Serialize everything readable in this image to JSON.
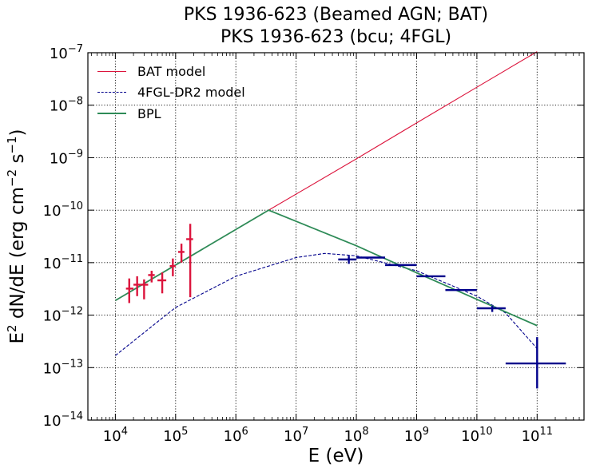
{
  "chart_data": {
    "type": "scatter",
    "title_line1": "PKS 1936-623 (Beamed AGN; BAT)",
    "title_line2": "PKS 1936-623 (bcu; 4FGL)",
    "xlabel": "E (eV)",
    "ylabel": "E2 dN/dE (erg cm−2 s−1)",
    "xscale": "log",
    "yscale": "log",
    "xlim": [
      3500,
      600000000000
    ],
    "ylim": [
      1e-14,
      1e-07
    ],
    "grid": true,
    "legend_position": "top-left",
    "x_tick_exponents": [
      4,
      5,
      6,
      7,
      8,
      9,
      10,
      11
    ],
    "y_tick_exponents": [
      -14,
      -13,
      -12,
      -11,
      -10,
      -9,
      -8,
      -7
    ],
    "series": [
      {
        "name": "BAT model",
        "kind": "line",
        "style": "solid",
        "color": "#dc143c",
        "x": [
          10000,
          3500000,
          100000000,
          1000000000,
          10000000000,
          100000000000
        ],
        "y": [
          1.9e-12,
          1e-10,
          9.5e-10,
          4.6e-09,
          2.2e-08,
          1.05e-07
        ]
      },
      {
        "name": "4FGL-DR2 model",
        "kind": "line",
        "style": "dashed",
        "color": "#00008b",
        "x": [
          10000,
          100000,
          1000000,
          10000000,
          30000000,
          100000000,
          1000000000,
          10000000000,
          30000000000,
          100000000000
        ],
        "y": [
          1.7e-13,
          1.4e-12,
          5.5e-12,
          1.25e-11,
          1.5e-11,
          1.35e-11,
          7e-12,
          2.3e-12,
          1.1e-12,
          2.3e-13
        ]
      },
      {
        "name": "BPL",
        "kind": "line",
        "style": "solid",
        "color": "#2e8b57",
        "x": [
          10000,
          3500000,
          100000000,
          1000000000,
          10000000000,
          100000000000
        ],
        "y": [
          1.9e-12,
          1e-10,
          2.1e-11,
          6.4e-12,
          2e-12,
          6.3e-13
        ]
      },
      {
        "name": "BAT data",
        "kind": "errorbar",
        "color": "#dc143c",
        "points": [
          {
            "x": 17000,
            "y": 3.2e-12,
            "xlo": 15000,
            "xhi": 20000,
            "ylo": 1.7e-12,
            "yhi": 5e-12
          },
          {
            "x": 23000,
            "y": 3.8e-12,
            "xlo": 20000,
            "xhi": 26000,
            "ylo": 2.3e-12,
            "yhi": 5.5e-12
          },
          {
            "x": 30000,
            "y": 3.8e-12,
            "xlo": 26000,
            "xhi": 35000,
            "ylo": 2e-12,
            "yhi": 4.8e-12
          },
          {
            "x": 40000,
            "y": 5.8e-12,
            "xlo": 35000,
            "xhi": 45000,
            "ylo": 4.2e-12,
            "yhi": 7e-12
          },
          {
            "x": 60000,
            "y": 4.6e-12,
            "xlo": 50000,
            "xhi": 70000,
            "ylo": 2.6e-12,
            "yhi": 6.5e-12
          },
          {
            "x": 90000,
            "y": 8.6e-12,
            "xlo": 80000,
            "xhi": 100000,
            "ylo": 5.5e-12,
            "yhi": 1.2e-11
          },
          {
            "x": 125000,
            "y": 1.6e-11,
            "xlo": 110000,
            "xhi": 140000,
            "ylo": 1e-11,
            "yhi": 2.3e-11
          },
          {
            "x": 175000,
            "y": 2.8e-11,
            "xlo": 150000,
            "xhi": 195000,
            "ylo": 2.2e-12,
            "yhi": 5.5e-11
          }
        ]
      },
      {
        "name": "4FGL data",
        "kind": "errorbar",
        "color": "#00008b",
        "points": [
          {
            "x": 75000000,
            "y": 1.15e-11,
            "xlo": 50000000,
            "xhi": 100000000,
            "ylo": 9.5e-12,
            "yhi": 1.35e-11
          },
          {
            "x": 180000000,
            "y": 1.25e-11,
            "xlo": 100000000,
            "xhi": 300000000,
            "ylo": 1.25e-11,
            "yhi": 1.25e-11
          },
          {
            "x": 550000000,
            "y": 9e-12,
            "xlo": 300000000,
            "xhi": 1000000000,
            "ylo": 9e-12,
            "yhi": 9e-12
          },
          {
            "x": 1800000000,
            "y": 5.5e-12,
            "xlo": 1000000000,
            "xhi": 3000000000,
            "ylo": 5.5e-12,
            "yhi": 5.5e-12
          },
          {
            "x": 5500000000,
            "y": 3e-12,
            "xlo": 3000000000,
            "xhi": 10000000000,
            "ylo": 3e-12,
            "yhi": 3e-12
          },
          {
            "x": 18000000000,
            "y": 1.35e-12,
            "xlo": 10000000000,
            "xhi": 30000000000,
            "ylo": 1.15e-12,
            "yhi": 1.5e-12
          },
          {
            "x": 100000000000,
            "y": 1.2e-13,
            "xlo": 30000000000,
            "xhi": 300000000000,
            "ylo": 4e-14,
            "yhi": 3.8e-13
          }
        ]
      }
    ],
    "legend": [
      {
        "label": "BAT model",
        "color": "#dc143c",
        "style": "solid"
      },
      {
        "label": "4FGL-DR2 model",
        "color": "#00008b",
        "style": "dashed"
      },
      {
        "label": "BPL",
        "color": "#2e8b57",
        "style": "solid"
      }
    ]
  }
}
